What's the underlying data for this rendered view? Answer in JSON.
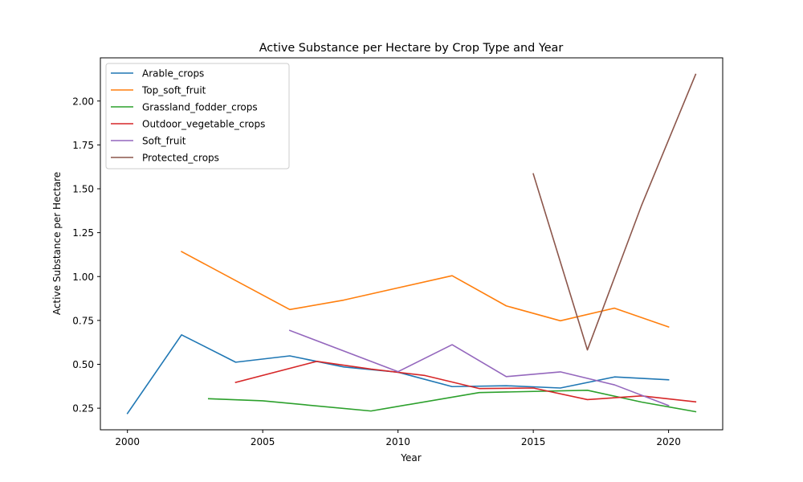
{
  "chart_data": {
    "type": "line",
    "title": "Active Substance per Hectare by Crop Type and Year",
    "xlabel": "Year",
    "ylabel": "Active Substance per Hectare",
    "xlim": [
      1999.0,
      2022.0
    ],
    "ylim": [
      0.127,
      2.246
    ],
    "xticks": [
      2000,
      2005,
      2010,
      2015,
      2020
    ],
    "yticks": [
      0.25,
      0.5,
      0.75,
      1.0,
      1.25,
      1.5,
      1.75,
      2.0
    ],
    "ytick_labels": [
      "0.25",
      "0.50",
      "0.75",
      "1.00",
      "1.25",
      "1.50",
      "1.75",
      "2.00"
    ],
    "grid": false,
    "legend_position": "upper-left",
    "series": [
      {
        "name": "Arable_crops",
        "color": "#1f77b4",
        "points": [
          [
            2000,
            0.22
          ],
          [
            2002,
            0.668
          ],
          [
            2004,
            0.512
          ],
          [
            2006,
            0.548
          ],
          [
            2008,
            0.485
          ],
          [
            2010,
            0.455
          ],
          [
            2012,
            0.373
          ],
          [
            2014,
            0.378
          ],
          [
            2016,
            0.365
          ],
          [
            2018,
            0.428
          ],
          [
            2020,
            0.412
          ]
        ]
      },
      {
        "name": "Top_soft_fruit",
        "color": "#ff7f0e",
        "points": [
          [
            2002,
            1.142
          ],
          [
            2006,
            0.812
          ],
          [
            2008,
            0.866
          ],
          [
            2012,
            1.005
          ],
          [
            2014,
            0.833
          ],
          [
            2016,
            0.748
          ],
          [
            2018,
            0.82
          ],
          [
            2020,
            0.713
          ]
        ]
      },
      {
        "name": "Grassland_fodder_crops",
        "color": "#2ca02c",
        "points": [
          [
            2003,
            0.304
          ],
          [
            2005,
            0.292
          ],
          [
            2009,
            0.234
          ],
          [
            2013,
            0.339
          ],
          [
            2017,
            0.352
          ],
          [
            2019,
            0.285
          ],
          [
            2021,
            0.23
          ]
        ]
      },
      {
        "name": "Outdoor_vegetable_crops",
        "color": "#d62728",
        "points": [
          [
            2004,
            0.397
          ],
          [
            2007,
            0.517
          ],
          [
            2009,
            0.473
          ],
          [
            2011,
            0.436
          ],
          [
            2013,
            0.362
          ],
          [
            2015,
            0.365
          ],
          [
            2017,
            0.299
          ],
          [
            2019,
            0.32
          ],
          [
            2021,
            0.286
          ]
        ]
      },
      {
        "name": "Soft_fruit",
        "color": "#9467bd",
        "points": [
          [
            2006,
            0.693
          ],
          [
            2010,
            0.458
          ],
          [
            2012,
            0.612
          ],
          [
            2014,
            0.43
          ],
          [
            2016,
            0.457
          ],
          [
            2018,
            0.383
          ],
          [
            2020,
            0.265
          ]
        ]
      },
      {
        "name": "Protected_crops",
        "color": "#8c564b",
        "points": [
          [
            2015,
            1.585
          ],
          [
            2017,
            0.582
          ],
          [
            2019,
            1.405
          ],
          [
            2021,
            2.152
          ]
        ]
      }
    ]
  }
}
